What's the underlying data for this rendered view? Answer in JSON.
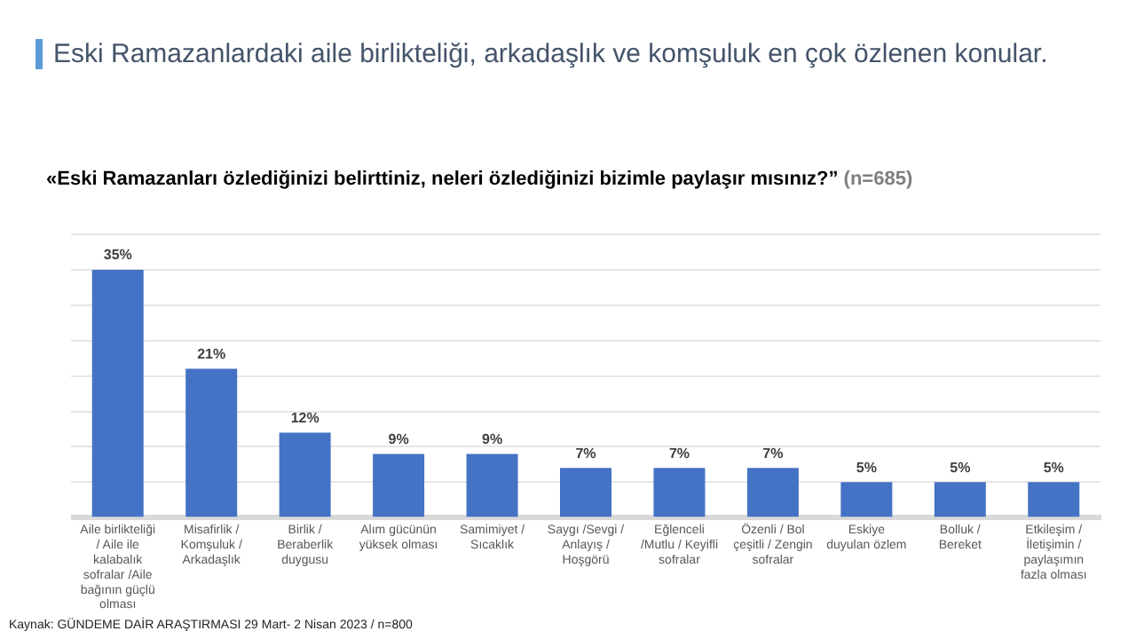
{
  "chart_data": {
    "type": "bar",
    "title": "Eski Ramazanlardaki aile birlikteliği, arkadaşlık ve komşuluk en çok özlenen konular.",
    "subtitle": "«Eski Ramazanları özlediğinizi belirttiniz, neleri özlediğinizi bizimle paylaşır mısınız?” (n=685)",
    "categories": [
      "Aile birlikteliği / Aile ile kalabalık sofralar /Aile bağının güçlü olması",
      "Misafirlik / Komşuluk / Arkadaşlık",
      "Birlik / Beraberlik duygusu",
      "Alım gücünün yüksek olması",
      "Samimiyet / Sıcaklık",
      "Saygı /Sevgi / Anlayış / Hoşgörü",
      "Eğlenceli /Mutlu / Keyifli sofralar",
      "Özenli / Bol çeşitli / Zengin sofralar",
      "Eskiye duyulan özlem",
      "Bolluk / Bereket",
      "Etkileşim / İletişimin / paylaşımın fazla olması"
    ],
    "values": [
      35,
      21,
      12,
      9,
      9,
      7,
      7,
      7,
      5,
      5,
      5
    ],
    "color": "#4472c4",
    "value_labels": [
      "35%",
      "21%",
      "12%",
      "9%",
      "9%",
      "7%",
      "7%",
      "7%",
      "5%",
      "5%",
      "5%"
    ],
    "ylim": [
      0,
      40
    ],
    "yticks": [
      {
        "value": 0,
        "label": null
      },
      {
        "value": 5,
        "label": null
      },
      {
        "value": 10,
        "label": null
      },
      {
        "value": 15,
        "label": null
      },
      {
        "value": 20,
        "label": null
      },
      {
        "value": 25,
        "label": null
      },
      {
        "value": 30,
        "label": null
      },
      {
        "value": 35,
        "label": null
      },
      {
        "value": 40,
        "label": null
      }
    ],
    "grid": "y",
    "tick_labels": "x",
    "legend": false,
    "annotations": [
      "Kaynak: GÜNDEME DAİR ARAŞTIRMASI   29 Mart- 2 Nisan 2023 / n=800"
    ]
  }
}
